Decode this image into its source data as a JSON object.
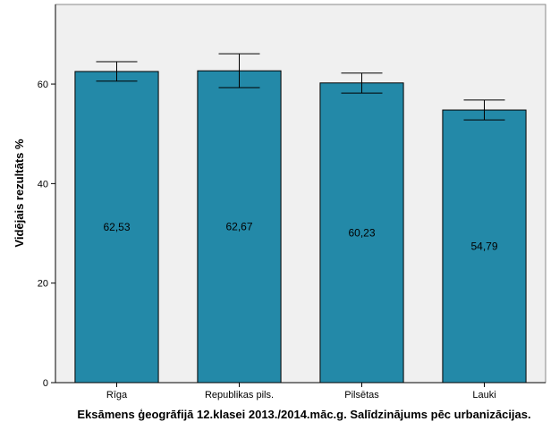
{
  "chart_data": {
    "type": "bar",
    "categories": [
      "Rīga",
      "Republikas pils.",
      "Pilsētas",
      "Lauki"
    ],
    "values": [
      62.53,
      62.67,
      60.23,
      54.79
    ],
    "data_labels": [
      "62,53",
      "62,67",
      "60,23",
      "54,79"
    ],
    "error_low": [
      60.6,
      59.3,
      58.2,
      52.8
    ],
    "error_high": [
      64.5,
      66.1,
      62.2,
      56.8
    ],
    "ylabel": "Vidējais rezultāts %",
    "xlabel": "Eksāmens ģeogrāfijā 12.klasei 2013./2014.māc.g. Salīdzinājums pēc urbanizācijas.",
    "ylim": [
      0,
      76
    ],
    "yticks": [
      0,
      20,
      40,
      60
    ],
    "grid": false,
    "colors": {
      "bar": "#2389A8",
      "plot_background": "#F0F0F0",
      "axis": "#000000"
    }
  }
}
